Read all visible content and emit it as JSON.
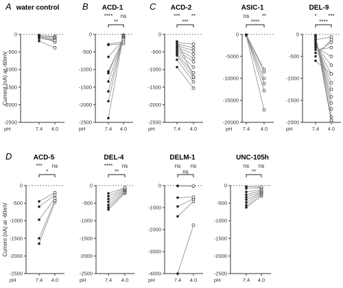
{
  "figure": {
    "ylabel": "Current (nA) at -60mV",
    "x_axis_name": "pH",
    "categories": [
      "7.4",
      "4.0"
    ]
  },
  "chart_data": [
    {
      "type": "scatter",
      "panel_label": "A",
      "title": "water control",
      "ylim": [
        -2500,
        0
      ],
      "yticks": [
        0,
        -500,
        -1000,
        -1500,
        -2000,
        -2500
      ],
      "significance": {
        "vs_zero": [
          "",
          ""
        ],
        "paired": ""
      },
      "series": [
        {
          "values": [
            -30,
            -60
          ]
        },
        {
          "values": [
            -20,
            -90
          ]
        },
        {
          "values": [
            -60,
            -120
          ]
        },
        {
          "values": [
            -80,
            -160
          ]
        },
        {
          "values": [
            -50,
            -220
          ]
        },
        {
          "values": [
            -120,
            -170
          ]
        },
        {
          "values": [
            -190,
            -380
          ]
        }
      ]
    },
    {
      "type": "scatter",
      "panel_label": "B",
      "title": "ACD-1",
      "ylim": [
        -2500,
        0
      ],
      "yticks": [
        0,
        -500,
        -1000,
        -1500,
        -2000,
        -2500
      ],
      "significance": {
        "vs_zero": [
          "****",
          "ns"
        ],
        "paired": "**"
      },
      "series": [
        {
          "values": [
            -2380,
            -20
          ]
        },
        {
          "values": [
            -1900,
            -30
          ]
        },
        {
          "values": [
            -1620,
            -50
          ]
        },
        {
          "values": [
            -1340,
            -80
          ]
        },
        {
          "values": [
            -1100,
            -100
          ]
        },
        {
          "values": [
            -1050,
            -120
          ]
        },
        {
          "values": [
            -640,
            -150
          ]
        },
        {
          "values": [
            -300,
            -260
          ]
        },
        {
          "values": [
            -280,
            -200
          ]
        }
      ]
    },
    {
      "type": "scatter",
      "panel_label": "C",
      "title": "ACD-2",
      "ylim": [
        -2500,
        0
      ],
      "yticks": [
        0,
        -500,
        -1000,
        -1500,
        -2000,
        -2500
      ],
      "significance": {
        "vs_zero": [
          "***",
          "**"
        ],
        "paired": "***"
      },
      "series": [
        {
          "values": [
            -930,
            -1530
          ]
        },
        {
          "values": [
            -720,
            -1350
          ]
        },
        {
          "values": [
            -600,
            -1230
          ]
        },
        {
          "values": [
            -560,
            -1090
          ]
        },
        {
          "values": [
            -500,
            -930
          ]
        },
        {
          "values": [
            -450,
            -780
          ]
        },
        {
          "values": [
            -400,
            -680
          ]
        },
        {
          "values": [
            -360,
            -560
          ]
        },
        {
          "values": [
            -320,
            -460
          ]
        },
        {
          "values": [
            -270,
            -380
          ]
        },
        {
          "values": [
            -230,
            -280
          ]
        },
        {
          "values": [
            -200,
            -1200
          ]
        }
      ]
    },
    {
      "type": "scatter",
      "panel_label": "",
      "title": "ASIC-1",
      "ylim": [
        -20000,
        0
      ],
      "yticks": [
        0,
        -5000,
        -10000,
        -15000,
        -20000
      ],
      "significance": {
        "vs_zero": [
          "ns",
          "**"
        ],
        "paired": "****"
      },
      "series": [
        {
          "values": [
            -300,
            -17200
          ]
        },
        {
          "values": [
            -200,
            -12800
          ]
        },
        {
          "values": [
            -150,
            -11200
          ]
        },
        {
          "values": [
            -100,
            -10000
          ]
        },
        {
          "values": [
            -80,
            -8500
          ]
        },
        {
          "values": [
            -50,
            -8000
          ]
        }
      ]
    },
    {
      "type": "scatter",
      "panel_label": "",
      "title": "DEL-9",
      "ylim": [
        -2000,
        0
      ],
      "yticks": [
        0,
        -500,
        -1000,
        -1500,
        -2000
      ],
      "significance": {
        "vs_zero": [
          "*",
          "***"
        ],
        "paired": "****"
      },
      "series": [
        {
          "values": [
            -20,
            -1980
          ]
        },
        {
          "values": [
            -40,
            -1880
          ]
        },
        {
          "values": [
            -60,
            -1700
          ]
        },
        {
          "values": [
            -80,
            -1560
          ]
        },
        {
          "values": [
            -100,
            -1420
          ]
        },
        {
          "values": [
            -140,
            -1250
          ]
        },
        {
          "values": [
            -180,
            -1100
          ]
        },
        {
          "values": [
            -220,
            -900
          ]
        },
        {
          "values": [
            -260,
            -700
          ]
        },
        {
          "values": [
            -300,
            -500
          ]
        },
        {
          "values": [
            -350,
            -300
          ]
        },
        {
          "values": [
            -420,
            -180
          ]
        },
        {
          "values": [
            -500,
            -120
          ]
        },
        {
          "values": [
            -600,
            -900
          ]
        },
        {
          "values": [
            -30,
            -1950
          ]
        },
        {
          "values": [
            -120,
            -60
          ]
        }
      ]
    },
    {
      "type": "scatter",
      "panel_label": "D",
      "title": "ACD-5",
      "ylim": [
        -2500,
        0
      ],
      "yticks": [
        0,
        -500,
        -1000,
        -1500,
        -2000,
        -2500
      ],
      "significance": {
        "vs_zero": [
          "***",
          "ns"
        ],
        "paired": "*"
      },
      "series": [
        {
          "values": [
            -1650,
            -470
          ]
        },
        {
          "values": [
            -1500,
            -420
          ]
        },
        {
          "values": [
            -970,
            -360
          ]
        },
        {
          "values": [
            -600,
            -270
          ]
        },
        {
          "values": [
            -450,
            -200
          ]
        }
      ]
    },
    {
      "type": "scatter",
      "panel_label": "",
      "title": "DEL-4",
      "ylim": [
        -2500,
        0
      ],
      "yticks": [
        0,
        -500,
        -1000,
        -1500,
        -2000,
        -2500
      ],
      "significance": {
        "vs_zero": [
          "****",
          "ns"
        ],
        "paired": "**"
      },
      "series": [
        {
          "values": [
            -680,
            -220
          ]
        },
        {
          "values": [
            -620,
            -190
          ]
        },
        {
          "values": [
            -550,
            -160
          ]
        },
        {
          "values": [
            -460,
            -130
          ]
        },
        {
          "values": [
            -380,
            -110
          ]
        },
        {
          "values": [
            -300,
            -80
          ]
        },
        {
          "values": [
            -220,
            -60
          ]
        }
      ]
    },
    {
      "type": "scatter",
      "panel_label": "",
      "title": "DELM-1",
      "ylim": [
        -4000,
        0
      ],
      "yticks": [
        0,
        -1000,
        -2000,
        -3000,
        -4000
      ],
      "significance": {
        "vs_zero": [
          "ns",
          "ns"
        ],
        "paired": "ns"
      },
      "series": [
        {
          "values": [
            -4000,
            -1800
          ]
        },
        {
          "values": [
            -1400,
            -720
          ]
        },
        {
          "values": [
            -950,
            -600
          ]
        },
        {
          "values": [
            -550,
            -520
          ]
        },
        {
          "values": [
            -20,
            -30
          ]
        },
        {
          "values": [
            -10,
            -20
          ]
        }
      ]
    },
    {
      "type": "scatter",
      "panel_label": "",
      "title": "UNC-105h",
      "ylim": [
        -2500,
        0
      ],
      "yticks": [
        0,
        -500,
        -1000,
        -1500,
        -2000,
        -2500
      ],
      "significance": {
        "vs_zero": [
          "ns",
          "ns"
        ],
        "paired": "**"
      },
      "series": [
        {
          "values": [
            -620,
            -300
          ]
        },
        {
          "values": [
            -560,
            -260
          ]
        },
        {
          "values": [
            -480,
            -220
          ]
        },
        {
          "values": [
            -400,
            -200
          ]
        },
        {
          "values": [
            -330,
            -170
          ]
        },
        {
          "values": [
            -260,
            -140
          ]
        },
        {
          "values": [
            -180,
            -110
          ]
        },
        {
          "values": [
            -80,
            -60
          ]
        },
        {
          "values": [
            -30,
            -40
          ]
        }
      ]
    }
  ]
}
